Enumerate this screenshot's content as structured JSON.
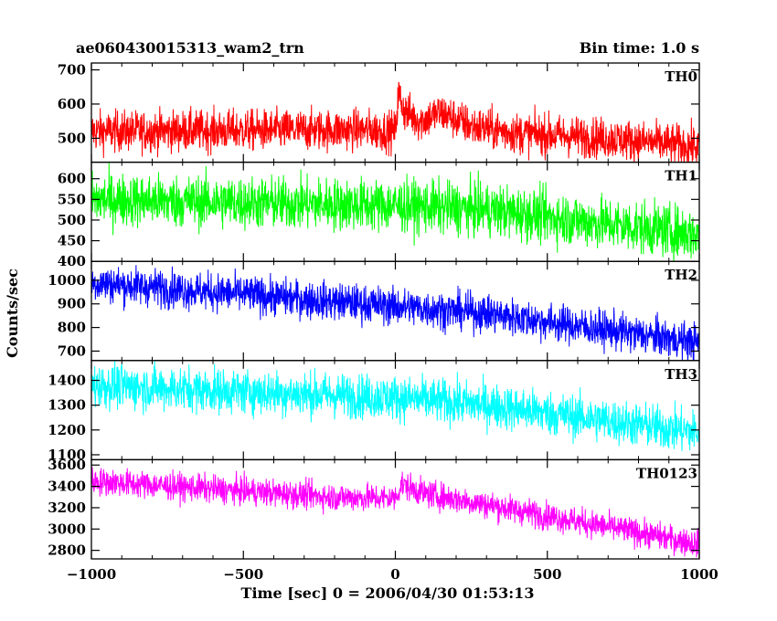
{
  "header": {
    "left_title": "ae060430015313_wam2_trn",
    "right_title": "Bin time: 1.0 s"
  },
  "chart_data": {
    "type": "line",
    "xlabel": "Time [sec] 0 = 2006/04/30 01:53:13",
    "ylabel": "Counts/sec",
    "xlim": [
      -1000,
      1000
    ],
    "x_ticks": [
      -1000,
      -500,
      0,
      500,
      1000
    ],
    "x_tick_labels": [
      "−1000",
      "−500",
      "0",
      "500",
      "1000"
    ],
    "grid": false,
    "panels": [
      {
        "name": "TH0",
        "color": "#ff0000",
        "ylim": [
          430,
          720
        ],
        "y_ticks": [
          500,
          600,
          700
        ],
        "trend_x": [
          -1000,
          -100,
          0,
          10,
          30,
          80,
          150,
          250,
          400,
          700,
          1000
        ],
        "trend_y": [
          520,
          525,
          520,
          630,
          580,
          550,
          575,
          535,
          515,
          500,
          475
        ],
        "noise": 30
      },
      {
        "name": "TH1",
        "color": "#00ff00",
        "ylim": [
          400,
          640
        ],
        "y_ticks": [
          400,
          450,
          500,
          550,
          600
        ],
        "trend_x": [
          -1000,
          0,
          300,
          1000
        ],
        "trend_y": [
          550,
          535,
          525,
          465
        ],
        "noise": 32
      },
      {
        "name": "TH2",
        "color": "#0000ff",
        "ylim": [
          660,
          1080
        ],
        "y_ticks": [
          700,
          800,
          900,
          1000
        ],
        "trend_x": [
          -1000,
          -200,
          0,
          300,
          1000
        ],
        "trend_y": [
          990,
          910,
          890,
          860,
          735
        ],
        "noise": 40
      },
      {
        "name": "TH3",
        "color": "#00ffff",
        "ylim": [
          1080,
          1480
        ],
        "y_ticks": [
          1100,
          1200,
          1300,
          1400
        ],
        "trend_x": [
          -1000,
          0,
          300,
          1000
        ],
        "trend_y": [
          1380,
          1330,
          1300,
          1190
        ],
        "noise": 45
      },
      {
        "name": "TH0123",
        "color": "#ff00ff",
        "ylim": [
          2720,
          3650
        ],
        "y_ticks": [
          2800,
          3000,
          3200,
          3400,
          3600
        ],
        "trend_x": [
          -1000,
          -200,
          0,
          20,
          100,
          300,
          1000
        ],
        "trend_y": [
          3450,
          3300,
          3290,
          3420,
          3330,
          3230,
          2860
        ],
        "noise": 65
      }
    ]
  }
}
